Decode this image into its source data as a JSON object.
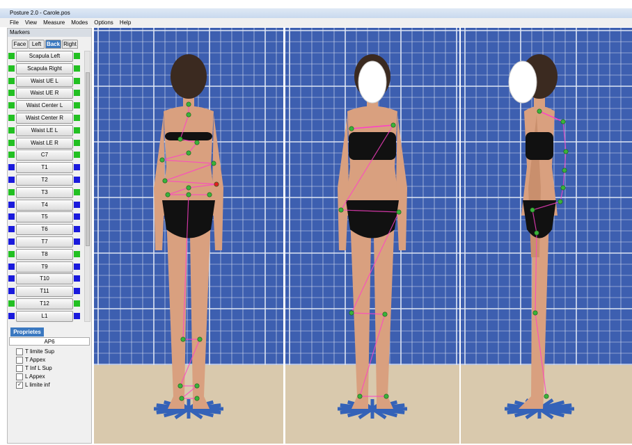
{
  "window": {
    "title": "Posture 2.0 - Carole.pos"
  },
  "menu": [
    "File",
    "View",
    "Measure",
    "Modes",
    "Options",
    "Help"
  ],
  "markers_panel": {
    "title": "Markers",
    "tabs": [
      "Face",
      "Left",
      "Back",
      "Right"
    ],
    "active_tab": 2,
    "markers": [
      {
        "label": "Scapula Left",
        "color": "#22c022"
      },
      {
        "label": "Scapula Right",
        "color": "#22c022"
      },
      {
        "label": "Waist UE L",
        "color": "#22c022"
      },
      {
        "label": "Waist UE R",
        "color": "#22c022"
      },
      {
        "label": "Waist Center L",
        "color": "#22c022"
      },
      {
        "label": "Waist Center R",
        "color": "#22c022"
      },
      {
        "label": "Waist LE L",
        "color": "#22c022"
      },
      {
        "label": "Waist LE R",
        "color": "#22c022"
      },
      {
        "label": "C7",
        "color": "#22c022"
      },
      {
        "label": "T1",
        "color": "#1a1adc"
      },
      {
        "label": "T2",
        "color": "#1a1adc"
      },
      {
        "label": "T3",
        "color": "#22c022"
      },
      {
        "label": "T4",
        "color": "#1a1adc"
      },
      {
        "label": "T5",
        "color": "#1a1adc"
      },
      {
        "label": "T6",
        "color": "#1a1adc"
      },
      {
        "label": "T7",
        "color": "#1a1adc"
      },
      {
        "label": "T8",
        "color": "#22c022"
      },
      {
        "label": "T9",
        "color": "#1a1adc"
      },
      {
        "label": "T10",
        "color": "#1a1adc"
      },
      {
        "label": "T11",
        "color": "#1a1adc"
      },
      {
        "label": "T12",
        "color": "#22c022"
      },
      {
        "label": "L1",
        "color": "#1a1adc"
      }
    ]
  },
  "properties": {
    "tab": "Proprietes",
    "field": "AP6",
    "options": [
      {
        "label": "T limite Sup",
        "checked": false
      },
      {
        "label": "T Appex",
        "checked": false
      },
      {
        "label": "T Inf L Sup",
        "checked": false
      },
      {
        "label": "L Appex",
        "checked": false
      },
      {
        "label": "L limite inf",
        "checked": true
      }
    ]
  }
}
